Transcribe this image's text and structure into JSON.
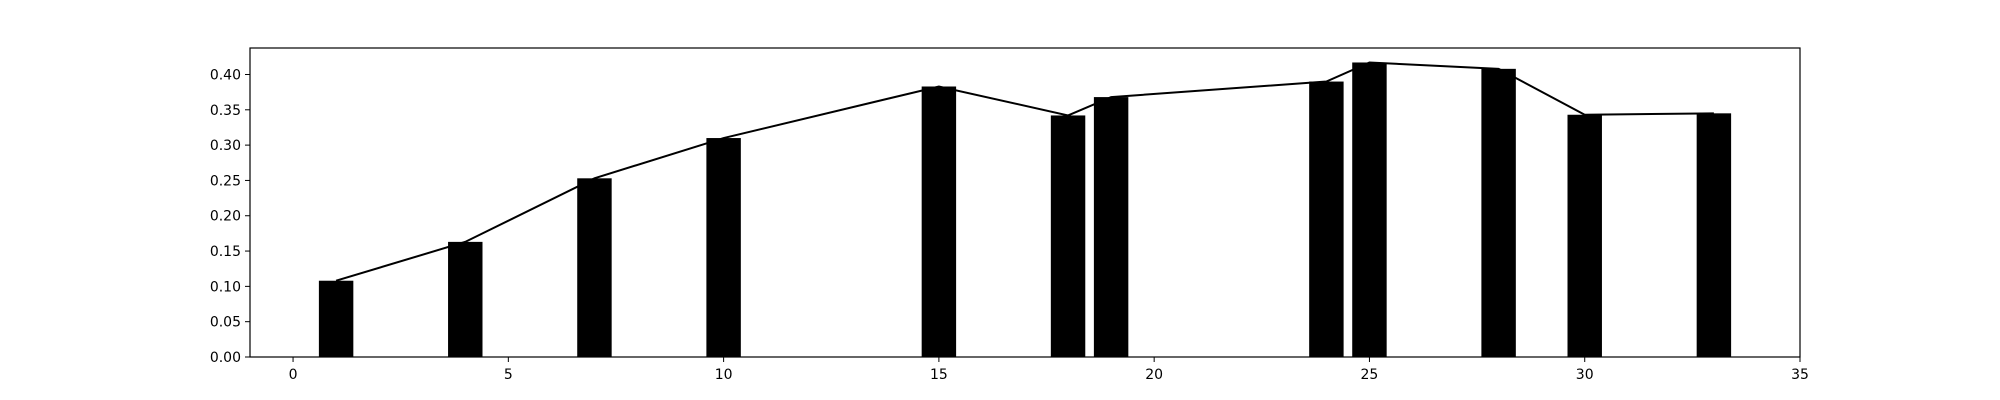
{
  "chart_data": {
    "type": "bar",
    "title": "",
    "xlabel": "",
    "ylabel": "",
    "xlim": [
      -1,
      35
    ],
    "ylim": [
      0,
      0.4375
    ],
    "grid": false,
    "x_ticks": [
      0,
      5,
      10,
      15,
      20,
      25,
      30,
      35
    ],
    "x_tick_labels": [
      "0",
      "5",
      "10",
      "15",
      "20",
      "25",
      "30",
      "35"
    ],
    "y_ticks": [
      0.0,
      0.05,
      0.1,
      0.15,
      0.2,
      0.25,
      0.3,
      0.35,
      0.4
    ],
    "y_tick_labels": [
      "0.00",
      "0.05",
      "0.10",
      "0.15",
      "0.20",
      "0.25",
      "0.30",
      "0.35",
      "0.40"
    ],
    "bar_width": 0.8,
    "colors": {
      "bar": "#000000",
      "line": "#000000",
      "background": "#ffffff"
    },
    "x": [
      1,
      4,
      7,
      10,
      15,
      18,
      19,
      24,
      25,
      28,
      30,
      33
    ],
    "values": [
      0.108,
      0.163,
      0.253,
      0.31,
      0.383,
      0.342,
      0.368,
      0.39,
      0.417,
      0.408,
      0.343,
      0.345
    ],
    "line": {
      "x": [
        1,
        4,
        7,
        10,
        15,
        18,
        19,
        24,
        25,
        28,
        30,
        33
      ],
      "y": [
        0.108,
        0.163,
        0.253,
        0.31,
        0.383,
        0.342,
        0.368,
        0.39,
        0.417,
        0.408,
        0.343,
        0.345
      ]
    }
  }
}
